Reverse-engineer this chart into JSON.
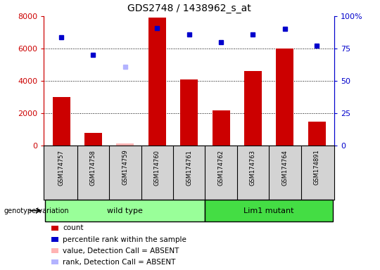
{
  "title": "GDS2748 / 1438962_s_at",
  "samples": [
    "GSM174757",
    "GSM174758",
    "GSM174759",
    "GSM174760",
    "GSM174761",
    "GSM174762",
    "GSM174763",
    "GSM174764",
    "GSM174891"
  ],
  "counts": [
    3000,
    800,
    null,
    7900,
    4100,
    2200,
    4600,
    6000,
    1500
  ],
  "counts_absent": [
    null,
    null,
    150,
    null,
    null,
    null,
    null,
    null,
    null
  ],
  "percentile_ranks_pct": [
    83.5,
    70.0,
    null,
    91.0,
    86.0,
    80.0,
    86.0,
    90.0,
    77.5
  ],
  "ranks_absent_pct": [
    null,
    null,
    61.0,
    null,
    null,
    null,
    null,
    null,
    null
  ],
  "wild_type_indices": [
    0,
    1,
    2,
    3,
    4
  ],
  "lim1_mutant_indices": [
    5,
    6,
    7,
    8
  ],
  "ylim_left": [
    0,
    8000
  ],
  "ylim_right": [
    0,
    100
  ],
  "yticks_left": [
    0,
    2000,
    4000,
    6000,
    8000
  ],
  "ytick_labels_left": [
    "0",
    "2000",
    "4000",
    "6000",
    "8000"
  ],
  "yticks_right": [
    0,
    25,
    50,
    75,
    100
  ],
  "ytick_labels_right": [
    "0",
    "25",
    "50",
    "75",
    "100%"
  ],
  "bar_color": "#cc0000",
  "bar_absent_color": "#ffb3b3",
  "dot_color": "#0000cc",
  "dot_absent_color": "#b3b3ff",
  "wild_type_color": "#99ff99",
  "lim1_mutant_color": "#44dd44",
  "left_axis_color": "#cc0000",
  "right_axis_color": "#0000cc",
  "genotype_label": "genotype/variation",
  "wild_type_label": "wild type",
  "lim1_mutant_label": "Lim1 mutant",
  "legend_items": [
    {
      "color": "#cc0000",
      "label": "count"
    },
    {
      "color": "#0000cc",
      "label": "percentile rank within the sample"
    },
    {
      "color": "#ffb3b3",
      "label": "value, Detection Call = ABSENT"
    },
    {
      "color": "#b3b3ff",
      "label": "rank, Detection Call = ABSENT"
    }
  ]
}
